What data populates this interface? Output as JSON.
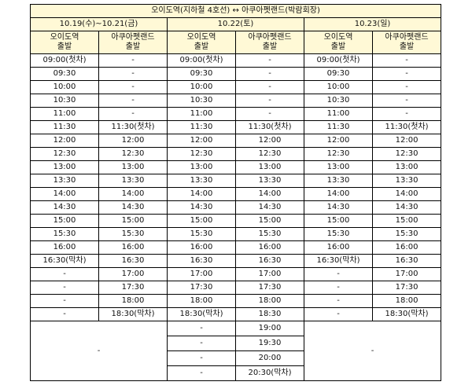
{
  "title": "오이도역(지하철 4호선) ↔ 아쿠아펫랜드(박람회장)",
  "dates": [
    "10.19(수)~10.21(금)",
    "10.22(토)",
    "10.23(일)"
  ],
  "columns": [
    [
      "오이도역",
      "출발"
    ],
    [
      "아쿠아펫랜드",
      "출발"
    ],
    [
      "오이도역",
      "출발"
    ],
    [
      "아쿠아펫랜드",
      "출발"
    ],
    [
      "오이도역",
      "출발"
    ],
    [
      "아쿠아펫랜드",
      "출발"
    ]
  ],
  "rows": [
    [
      "09:00(첫차)",
      "-",
      "09:00(첫차)",
      "-",
      "09:00(첫차)",
      "-"
    ],
    [
      "09:30",
      "-",
      "09:30",
      "-",
      "09:30",
      "-"
    ],
    [
      "10:00",
      "-",
      "10:00",
      "-",
      "10:00",
      "-"
    ],
    [
      "10:30",
      "-",
      "10:30",
      "-",
      "10:30",
      "-"
    ],
    [
      "11:00",
      "-",
      "11:00",
      "-",
      "11:00",
      "-"
    ],
    [
      "11:30",
      "11:30(첫차)",
      "11:30",
      "11:30(첫차)",
      "11:30",
      "11:30(첫차)"
    ],
    [
      "12:00",
      "12:00",
      "12:00",
      "12:00",
      "12:00",
      "12:00"
    ],
    [
      "12:30",
      "12:30",
      "12:30",
      "12:30",
      "12:30",
      "12:30"
    ],
    [
      "13:00",
      "13:00",
      "13:00",
      "13:00",
      "13:00",
      "13:00"
    ],
    [
      "13:30",
      "13:30",
      "13:30",
      "13:30",
      "13:30",
      "13:30"
    ],
    [
      "14:00",
      "14:00",
      "14:00",
      "14:00",
      "14:00",
      "14:00"
    ],
    [
      "14:30",
      "14:30",
      "14:30",
      "14:30",
      "14:30",
      "14:30"
    ],
    [
      "15:00",
      "15:00",
      "15:00",
      "15:00",
      "15:00",
      "15:00"
    ],
    [
      "15:30",
      "15:30",
      "15:30",
      "15:30",
      "15:30",
      "15:30"
    ],
    [
      "16:00",
      "16:00",
      "16:00",
      "16:00",
      "16:00",
      "16:00"
    ],
    [
      "16:30(막차)",
      "16:30",
      "16:30",
      "16:30",
      "16:30(막차)",
      "16:30"
    ],
    [
      "-",
      "17:00",
      "17:00",
      "17:00",
      "-",
      "17:00"
    ],
    [
      "-",
      "17:30",
      "17:30",
      "17:30",
      "-",
      "17:30"
    ],
    [
      "-",
      "18:00",
      "18:00",
      "18:00",
      "-",
      "18:00"
    ],
    [
      "-",
      "18:30(막차)",
      "18:30(막차)",
      "18:30",
      "-",
      "18:30(막차)"
    ]
  ],
  "extra_rows": [
    [
      "-",
      "19:00"
    ],
    [
      "-",
      "19:30"
    ],
    [
      "-",
      "20:00"
    ],
    [
      "-",
      "20:30(막차)"
    ]
  ],
  "extra_side_left": "-",
  "extra_side_right": "-"
}
